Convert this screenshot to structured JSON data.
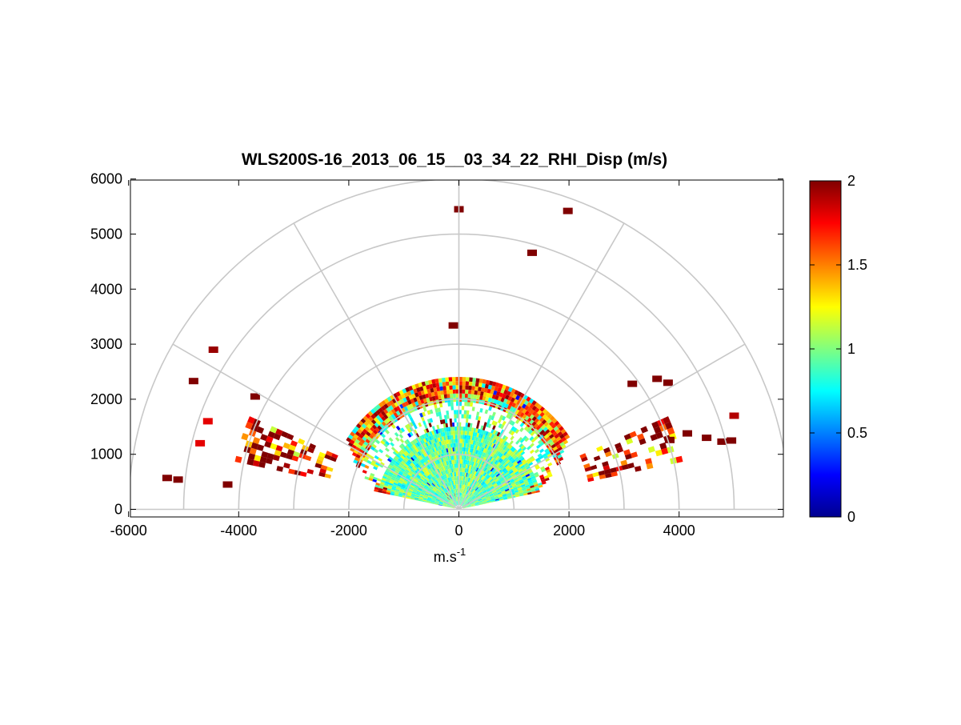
{
  "chart_data": {
    "type": "heatmap",
    "subtype": "polar-rhi-scan",
    "title": "WLS200S-16_2013_06_15__03_34_22_RHI_Disp (m/s)",
    "xlabel": "m.s",
    "xlabel_superscript": "-1",
    "ylabel": "",
    "xlim": [
      -6000,
      6000
    ],
    "ylim": [
      -100,
      6000
    ],
    "x_ticks": [
      -6000,
      -4000,
      -2000,
      0,
      2000,
      4000
    ],
    "y_ticks": [
      0,
      1000,
      2000,
      3000,
      4000,
      5000,
      6000
    ],
    "polar_grid": {
      "color": "#c8c8c8",
      "range_rings": [
        1000,
        2000,
        3000,
        4000,
        5000,
        6000
      ],
      "spokes_deg": [
        0,
        30,
        60,
        90,
        120,
        150,
        180
      ]
    },
    "colorbar": {
      "colormap": "jet",
      "min": 0,
      "max": 2,
      "ticks": [
        0,
        0.5,
        1,
        1.5,
        2
      ]
    },
    "scan": {
      "main_sector_elevation_deg": [
        12,
        168
      ],
      "main_range_m": [
        0,
        2400
      ],
      "typical_value": 0.95
    },
    "sparse_cells": [
      {
        "x": 0,
        "y": 5450,
        "v": 2.0
      },
      {
        "x": 1980,
        "y": 5420,
        "v": 2.0
      },
      {
        "x": 1330,
        "y": 4660,
        "v": 2.0
      },
      {
        "x": -100,
        "y": 3340,
        "v": 2.0
      },
      {
        "x": -4460,
        "y": 2900,
        "v": 1.95
      },
      {
        "x": -4560,
        "y": 1600,
        "v": 1.8
      },
      {
        "x": -4700,
        "y": 1200,
        "v": 1.8
      },
      {
        "x": -4820,
        "y": 2330,
        "v": 2.0
      },
      {
        "x": -5300,
        "y": 570,
        "v": 2.0
      },
      {
        "x": -5100,
        "y": 540,
        "v": 2.0
      },
      {
        "x": -3700,
        "y": 2050,
        "v": 2.0
      },
      {
        "x": -4200,
        "y": 450,
        "v": 2.0
      },
      {
        "x": 4780,
        "y": 1230,
        "v": 2.0
      },
      {
        "x": 4950,
        "y": 1250,
        "v": 2.0
      },
      {
        "x": 4500,
        "y": 1300,
        "v": 2.0
      },
      {
        "x": 4150,
        "y": 1380,
        "v": 2.0
      },
      {
        "x": 3830,
        "y": 1260,
        "v": 2.0
      },
      {
        "x": 3150,
        "y": 2280,
        "v": 2.0
      },
      {
        "x": 3600,
        "y": 2370,
        "v": 2.0
      },
      {
        "x": 3800,
        "y": 2300,
        "v": 2.0
      },
      {
        "x": 5000,
        "y": 1700,
        "v": 1.9
      }
    ]
  }
}
